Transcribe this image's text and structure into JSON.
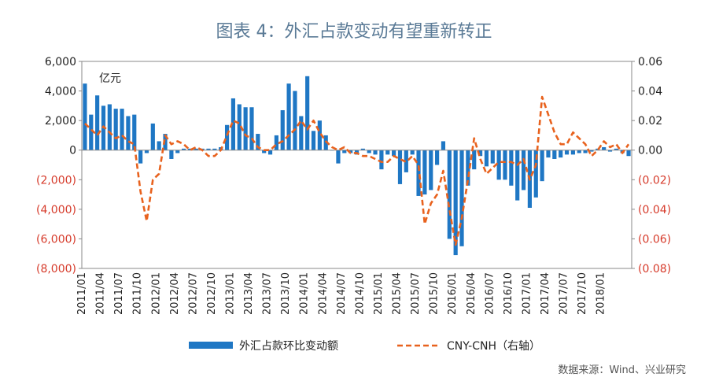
{
  "header": {
    "title": "图表 4：外汇占款变动有望重新转正"
  },
  "footer": {
    "source": "数据来源：Wind、兴业研究"
  },
  "colors": {
    "bar": "#1f77c4",
    "line": "#e8621e",
    "neg_tick": "#d63a2a",
    "axis": "#555555"
  },
  "chart_data": {
    "type": "bar",
    "unit_label": "亿元",
    "legend": {
      "bar_label": "外汇占款环比变动额",
      "line_label": "CNY-CNH（右轴）",
      "placement": "bottom"
    },
    "y_left": {
      "min": -8000,
      "max": 6000,
      "ticks": [
        "6,000",
        "4,000",
        "2,000",
        "0",
        "(2,000)",
        "(4,000)",
        "(6,000)",
        "(8,000)"
      ]
    },
    "y_right": {
      "min": -0.08,
      "max": 0.06,
      "ticks": [
        "0.06",
        "0.04",
        "0.02",
        "0.00",
        "(0.02)",
        "(0.04)",
        "(0.06)",
        "(0.08)"
      ]
    },
    "x_tick_labels": [
      "2011/01",
      "2011/04",
      "2011/07",
      "2011/10",
      "2012/01",
      "2012/04",
      "2012/07",
      "2012/10",
      "2013/01",
      "2013/04",
      "2013/07",
      "2013/10",
      "2014/01",
      "2014/04",
      "2014/07",
      "2014/10",
      "2015/01",
      "2015/04",
      "2015/07",
      "2015/10",
      "2016/01",
      "2016/04",
      "2016/07",
      "2016/10",
      "2017/01",
      "2017/04",
      "2017/07",
      "2017/10",
      "2018/01"
    ],
    "series": [
      {
        "name": "外汇占款环比变动额",
        "type": "bar",
        "values": [
          4500,
          2400,
          3700,
          3000,
          3100,
          2800,
          2800,
          2300,
          2400,
          -900,
          -200,
          1800,
          600,
          1100,
          -600,
          -200,
          100,
          100,
          100,
          100,
          100,
          100,
          200,
          1700,
          3500,
          3100,
          2900,
          2900,
          1100,
          -200,
          -300,
          1000,
          2700,
          4500,
          4000,
          2300,
          5000,
          1300,
          2000,
          1000,
          0,
          -900,
          -200,
          -200,
          -300,
          100,
          -200,
          -300,
          -1300,
          -300,
          -400,
          -2300,
          -1500,
          -300,
          -3100,
          -3000,
          -2700,
          -1000,
          600,
          -6000,
          -7100,
          -6500,
          -2400,
          -1300,
          -400,
          -1100,
          -900,
          -2000,
          -2000,
          -2400,
          -3400,
          -2700,
          -3900,
          -3200,
          -2100,
          -500,
          -600,
          -500,
          -300,
          -300,
          -200,
          -200,
          -100,
          100,
          200,
          -100,
          100,
          -200,
          -400
        ]
      },
      {
        "name": "CNY-CNH（右轴）",
        "type": "line",
        "values": [
          0.018,
          0.014,
          0.01,
          0.016,
          0.012,
          0.008,
          0.01,
          0.006,
          0.004,
          -0.028,
          -0.048,
          -0.02,
          -0.016,
          0.01,
          0.004,
          0.006,
          0.004,
          0.0,
          0.002,
          0.0,
          -0.004,
          -0.004,
          0.0,
          0.01,
          0.02,
          0.018,
          0.01,
          0.008,
          0.002,
          0.0,
          0.0,
          0.004,
          0.006,
          0.01,
          0.014,
          0.02,
          0.014,
          0.02,
          0.012,
          0.006,
          0.002,
          0.0,
          0.002,
          -0.002,
          -0.002,
          -0.004,
          -0.004,
          -0.006,
          -0.008,
          -0.008,
          -0.004,
          -0.006,
          -0.008,
          -0.004,
          -0.01,
          -0.05,
          -0.036,
          -0.03,
          -0.014,
          -0.04,
          -0.064,
          -0.046,
          -0.02,
          0.008,
          -0.006,
          -0.016,
          -0.012,
          -0.008,
          -0.008,
          -0.008,
          -0.01,
          -0.006,
          -0.02,
          -0.01,
          0.036,
          0.024,
          0.012,
          0.004,
          0.004,
          0.012,
          0.008,
          0.004,
          -0.004,
          0.0,
          0.006,
          0.002,
          0.004,
          -0.002,
          0.004
        ]
      }
    ]
  }
}
